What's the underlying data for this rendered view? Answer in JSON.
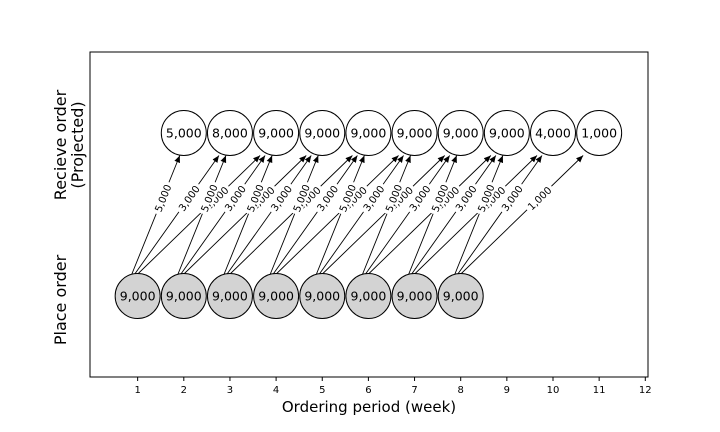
{
  "chart_data": {
    "type": "diagram",
    "xlabel": "Ordering period (week)",
    "rows": {
      "top": {
        "label_line1": "Recieve order",
        "label_line2": "(Projected)"
      },
      "bottom": {
        "label": "Place order"
      }
    },
    "xlim": [
      0,
      12.1
    ],
    "x_ticks": [
      1,
      2,
      3,
      4,
      5,
      6,
      7,
      8,
      9,
      10,
      11,
      12
    ],
    "place_orders": [
      {
        "week": 1,
        "value": "9,000"
      },
      {
        "week": 2,
        "value": "9,000"
      },
      {
        "week": 3,
        "value": "9,000"
      },
      {
        "week": 4,
        "value": "9,000"
      },
      {
        "week": 5,
        "value": "9,000"
      },
      {
        "week": 6,
        "value": "9,000"
      },
      {
        "week": 7,
        "value": "9,000"
      },
      {
        "week": 8,
        "value": "9,000"
      }
    ],
    "receive_orders": [
      {
        "week": 2,
        "value": "5,000"
      },
      {
        "week": 3,
        "value": "8,000"
      },
      {
        "week": 4,
        "value": "9,000"
      },
      {
        "week": 5,
        "value": "9,000"
      },
      {
        "week": 6,
        "value": "9,000"
      },
      {
        "week": 7,
        "value": "9,000"
      },
      {
        "week": 8,
        "value": "9,000"
      },
      {
        "week": 9,
        "value": "9,000"
      },
      {
        "week": 10,
        "value": "4,000"
      },
      {
        "week": 11,
        "value": "1,000"
      }
    ],
    "lead_time_split": [
      {
        "lead_weeks": 1,
        "label": "5,000"
      },
      {
        "lead_weeks": 2,
        "label": "3,000"
      },
      {
        "lead_weeks": 3,
        "label": "1,000"
      }
    ],
    "colors": {
      "place_fill": "#d3d3d3",
      "receive_fill": "#ffffff",
      "stroke": "#000000"
    }
  }
}
